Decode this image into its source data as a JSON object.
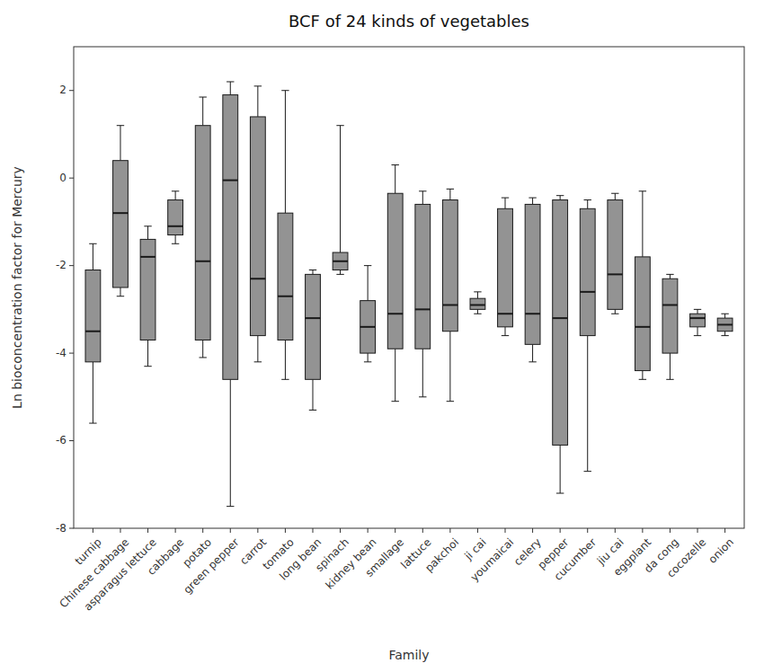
{
  "chart_data": {
    "type": "box",
    "title": "BCF of 24 kinds of vegetables",
    "x_label": "Family",
    "y_label": "Ln bioconcentration factor for Mercury",
    "ylim": [
      -8,
      3
    ],
    "yticks": [
      -8,
      -6,
      -4,
      -2,
      0,
      2
    ],
    "grid": false,
    "color": "#939393",
    "categories": [
      "turnip",
      "Chinese cabbage",
      "asparagus lettuce",
      "cabbage",
      "potato",
      "green pepper",
      "carrot",
      "tomato",
      "long bean",
      "spinach",
      "kidney bean",
      "smallage",
      "lattuce",
      "pakchoi",
      "ji cai",
      "youmaicai",
      "celery",
      "pepper",
      "cucumber",
      "jiu cai",
      "eggplant",
      "da cong",
      "cocozelle",
      "onion"
    ],
    "boxes": [
      {
        "whislo": -5.6,
        "q1": -4.2,
        "med": -3.5,
        "q3": -2.1,
        "whishi": -1.5
      },
      {
        "whislo": -2.7,
        "q1": -2.5,
        "med": -0.8,
        "q3": 0.4,
        "whishi": 1.2
      },
      {
        "whislo": -4.3,
        "q1": -3.7,
        "med": -1.8,
        "q3": -1.4,
        "whishi": -1.1
      },
      {
        "whislo": -1.5,
        "q1": -1.3,
        "med": -1.1,
        "q3": -0.5,
        "whishi": -0.3
      },
      {
        "whislo": -4.1,
        "q1": -3.7,
        "med": -1.9,
        "q3": 1.2,
        "whishi": 1.85
      },
      {
        "whislo": -7.5,
        "q1": -4.6,
        "med": -0.05,
        "q3": 1.9,
        "whishi": 2.2
      },
      {
        "whislo": -4.2,
        "q1": -3.6,
        "med": -2.3,
        "q3": 1.4,
        "whishi": 2.1
      },
      {
        "whislo": -4.6,
        "q1": -3.7,
        "med": -2.7,
        "q3": -0.8,
        "whishi": 2.0
      },
      {
        "whislo": -5.3,
        "q1": -4.6,
        "med": -3.2,
        "q3": -2.2,
        "whishi": -2.1
      },
      {
        "whislo": -2.2,
        "q1": -2.1,
        "med": -1.9,
        "q3": -1.7,
        "whishi": 1.2
      },
      {
        "whislo": -4.2,
        "q1": -4.0,
        "med": -3.4,
        "q3": -2.8,
        "whishi": -2.0
      },
      {
        "whislo": -5.1,
        "q1": -3.9,
        "med": -3.1,
        "q3": -0.35,
        "whishi": 0.3
      },
      {
        "whislo": -5.0,
        "q1": -3.9,
        "med": -3.0,
        "q3": -0.6,
        "whishi": -0.3
      },
      {
        "whislo": -5.1,
        "q1": -3.5,
        "med": -2.9,
        "q3": -0.5,
        "whishi": -0.25
      },
      {
        "whislo": -3.1,
        "q1": -3.0,
        "med": -2.9,
        "q3": -2.75,
        "whishi": -2.6
      },
      {
        "whislo": -3.6,
        "q1": -3.4,
        "med": -3.1,
        "q3": -0.7,
        "whishi": -0.45
      },
      {
        "whislo": -4.2,
        "q1": -3.8,
        "med": -3.1,
        "q3": -0.6,
        "whishi": -0.45
      },
      {
        "whislo": -7.2,
        "q1": -6.1,
        "med": -3.2,
        "q3": -0.5,
        "whishi": -0.4
      },
      {
        "whislo": -6.7,
        "q1": -3.6,
        "med": -2.6,
        "q3": -0.7,
        "whishi": -0.5
      },
      {
        "whislo": -3.1,
        "q1": -3.0,
        "med": -2.2,
        "q3": -0.5,
        "whishi": -0.35
      },
      {
        "whislo": -4.6,
        "q1": -4.4,
        "med": -3.4,
        "q3": -1.8,
        "whishi": -0.3
      },
      {
        "whislo": -4.6,
        "q1": -4.0,
        "med": -2.9,
        "q3": -2.3,
        "whishi": -2.2
      },
      {
        "whislo": -3.6,
        "q1": -3.4,
        "med": -3.2,
        "q3": -3.1,
        "whishi": -3.0
      },
      {
        "whislo": -3.6,
        "q1": -3.5,
        "med": -3.35,
        "q3": -3.2,
        "whishi": -3.1
      }
    ]
  }
}
